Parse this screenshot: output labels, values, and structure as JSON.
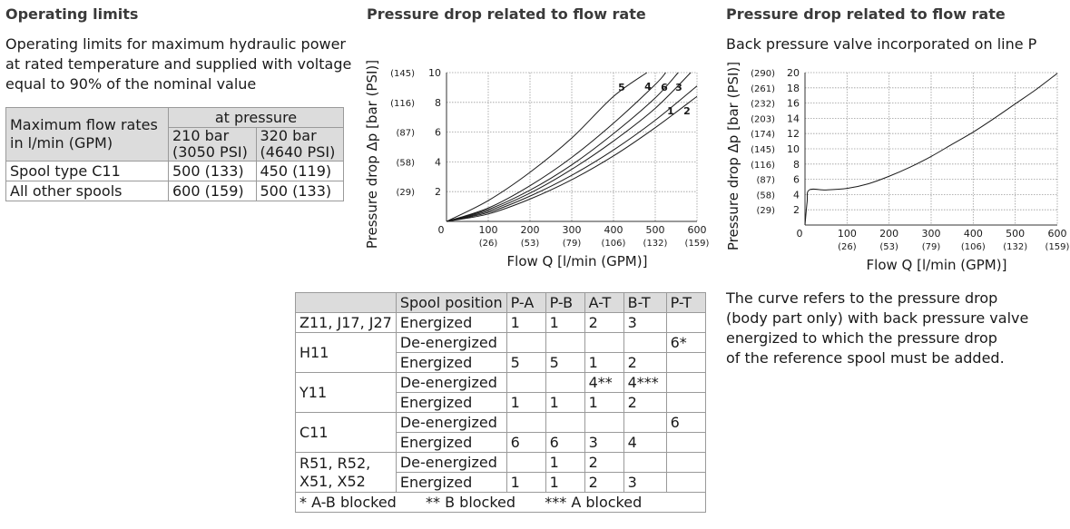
{
  "left": {
    "title": "Operating limits",
    "description": [
      "Operating limits for maximum hydraulic power",
      "at rated temperature and supplied with voltage",
      "equal to 90% of the nominal value"
    ],
    "table": {
      "row_header": [
        "Maximum flow rates",
        "in l/min (GPM)"
      ],
      "group_header": "at pressure",
      "col1": [
        "210 bar",
        "(3050 PSI)"
      ],
      "col2": [
        "320 bar",
        "(4640 PSI)"
      ],
      "rows": [
        {
          "label": "Spool type C11",
          "v1": "500 (133)",
          "v2": "450 (119)"
        },
        {
          "label": "All other spools",
          "v1": "600 (159)",
          "v2": "500 (133)"
        }
      ]
    }
  },
  "middle": {
    "title": "Pressure drop related to flow rate",
    "spool_table": {
      "headers": [
        "Spool position",
        "P-A",
        "P-B",
        "A-T",
        "B-T",
        "P-T"
      ],
      "groups": [
        {
          "name": "Z11, J17, J27",
          "rows": [
            [
              "Energized",
              "1",
              "1",
              "2",
              "3",
              ""
            ]
          ]
        },
        {
          "name": "H11",
          "rows": [
            [
              "De-energized",
              "",
              "",
              "",
              "",
              "6*"
            ],
            [
              "Energized",
              "5",
              "5",
              "1",
              "2",
              ""
            ]
          ]
        },
        {
          "name": "Y11",
          "rows": [
            [
              "De-energized",
              "",
              "",
              "4**",
              "4***",
              ""
            ],
            [
              "Energized",
              "1",
              "1",
              "1",
              "2",
              ""
            ]
          ]
        },
        {
          "name": "C11",
          "rows": [
            [
              "De-energized",
              "",
              "",
              "",
              "",
              "6"
            ],
            [
              "Energized",
              "6",
              "6",
              "3",
              "4",
              ""
            ]
          ]
        },
        {
          "name": "R51, R52,\nX51, X52",
          "name_lines": [
            "R51, R52,",
            "X51, X52"
          ],
          "rows": [
            [
              "De-energized",
              "",
              "1",
              "2",
              "",
              ""
            ],
            [
              "Energized",
              "1",
              "1",
              "2",
              "3",
              ""
            ]
          ]
        }
      ],
      "footnote": [
        "* A-B blocked",
        "** B blocked",
        "*** A blocked"
      ]
    }
  },
  "right": {
    "title": "Pressure drop related to flow rate",
    "subtitle": "Back pressure valve incorporated on line P",
    "note": [
      "The curve refers to the pressure drop",
      "(body part only) with back pressure valve",
      "energized to which the pressure drop",
      "of the reference spool must be added."
    ]
  },
  "chart_data": [
    {
      "type": "line",
      "ylabel": "Pressure drop Δp [bar (PSI)]",
      "xlabel": "Flow Q [l/min (GPM)]",
      "xlim": [
        0,
        600
      ],
      "ylim": [
        0,
        10
      ],
      "x_ticks": [
        "0",
        "100",
        "200",
        "300",
        "400",
        "500",
        "600"
      ],
      "x_ticks_gpm": [
        "(26)",
        "(53)",
        "(79)",
        "(106)",
        "(132)",
        "(159)"
      ],
      "y_ticks": [
        "2",
        "4",
        "6",
        "8",
        "10"
      ],
      "y_ticks_psi": [
        "(29)",
        "(58)",
        "(87)",
        "(116)",
        "(145)"
      ],
      "grid": true,
      "series": [
        {
          "name": "5",
          "x": [
            0,
            100,
            200,
            300,
            400,
            480
          ],
          "y": [
            0,
            1.4,
            3.3,
            5.6,
            8.4,
            10
          ]
        },
        {
          "name": "4",
          "x": [
            0,
            100,
            200,
            300,
            400,
            500,
            525
          ],
          "y": [
            0,
            0.9,
            2.4,
            4.3,
            6.6,
            9.2,
            10
          ]
        },
        {
          "name": "6",
          "x": [
            0,
            100,
            200,
            300,
            400,
            500,
            555
          ],
          "y": [
            0,
            0.8,
            2.1,
            3.8,
            5.9,
            8.3,
            10
          ]
        },
        {
          "name": "3",
          "x": [
            0,
            100,
            200,
            300,
            400,
            500,
            585
          ],
          "y": [
            0,
            0.7,
            1.9,
            3.5,
            5.4,
            7.6,
            10
          ]
        },
        {
          "name": "1",
          "x": [
            0,
            100,
            200,
            300,
            400,
            500,
            600
          ],
          "y": [
            0,
            0.6,
            1.7,
            3.1,
            4.8,
            6.8,
            9.1
          ]
        },
        {
          "name": "2",
          "x": [
            0,
            100,
            200,
            300,
            400,
            500,
            600
          ],
          "y": [
            0,
            0.5,
            1.5,
            2.8,
            4.4,
            6.3,
            8.4
          ]
        }
      ]
    },
    {
      "type": "line",
      "ylabel": "Pressure drop Δp [bar (PSI)]",
      "xlabel": "Flow Q [l/min (GPM)]",
      "xlim": [
        0,
        600
      ],
      "ylim": [
        0,
        20
      ],
      "x_ticks": [
        "0",
        "100",
        "200",
        "300",
        "400",
        "500",
        "600"
      ],
      "x_ticks_gpm": [
        "(26)",
        "(53)",
        "(79)",
        "(106)",
        "(132)",
        "(159)"
      ],
      "y_ticks": [
        "2",
        "4",
        "6",
        "8",
        "10",
        "12",
        "14",
        "16",
        "18",
        "20"
      ],
      "y_ticks_psi": [
        "(29)",
        "(58)",
        "(87)",
        "(116)",
        "(145)",
        "(174)",
        "(203)",
        "(232)",
        "(261)",
        "(290)"
      ],
      "grid": true,
      "series": [
        {
          "x": [
            0,
            5,
            10,
            50,
            100,
            150,
            200,
            250,
            300,
            350,
            400,
            450,
            500,
            550,
            600
          ],
          "y": [
            0,
            3.0,
            4.6,
            4.6,
            4.8,
            5.4,
            6.4,
            7.6,
            9.0,
            10.6,
            12.2,
            14.0,
            15.9,
            17.8,
            19.9
          ]
        }
      ]
    }
  ]
}
